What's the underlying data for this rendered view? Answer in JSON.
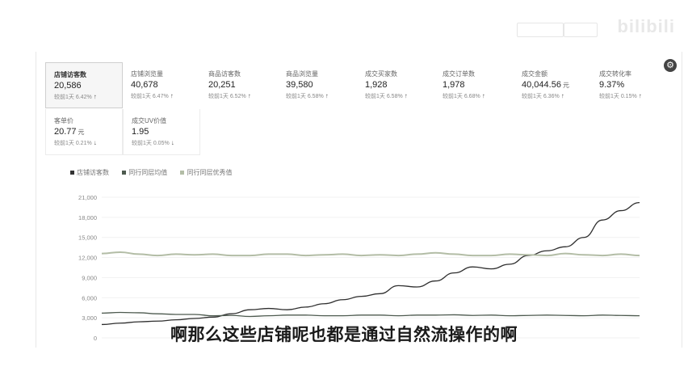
{
  "metrics": [
    {
      "name": "店铺访客数",
      "value": "20,586",
      "unit": "",
      "compare": "较前1天 6.42%",
      "trend": "up"
    },
    {
      "name": "店铺浏览量",
      "value": "40,678",
      "unit": "",
      "compare": "较前1天 6.47%",
      "trend": "up"
    },
    {
      "name": "商品访客数",
      "value": "20,251",
      "unit": "",
      "compare": "较前1天 6.52%",
      "trend": "up"
    },
    {
      "name": "商品浏览量",
      "value": "39,580",
      "unit": "",
      "compare": "较前1天 6.58%",
      "trend": "up"
    },
    {
      "name": "成交买家数",
      "value": "1,928",
      "unit": "",
      "compare": "较前1天 6.58%",
      "trend": "up"
    },
    {
      "name": "成交订单数",
      "value": "1,978",
      "unit": "",
      "compare": "较前1天 6.68%",
      "trend": "up"
    },
    {
      "name": "成交金额",
      "value": "40,044.56",
      "unit": "元",
      "compare": "较前1天 6.36%",
      "trend": "up"
    },
    {
      "name": "成交转化率",
      "value": "9.37%",
      "unit": "",
      "compare": "较前1天 0.15%",
      "trend": "up"
    },
    {
      "name": "客单价",
      "value": "20.77",
      "unit": "元",
      "compare": "较前1天 0.21%",
      "trend": "down"
    },
    {
      "name": "成交UV价值",
      "value": "1.95",
      "unit": "",
      "compare": "较前1天 0.05%",
      "trend": "down"
    }
  ],
  "icons": {
    "up": "↑",
    "down": "↓",
    "help": "⚙"
  },
  "legend": [
    {
      "label": "店铺访客数",
      "color": "#333333"
    },
    {
      "label": "同行同层均值",
      "color": "#4d5a4f"
    },
    {
      "label": "同行同层优秀值",
      "color": "#b3bda6"
    }
  ],
  "watermark": "bilibili",
  "subtitle": "啊那么这些店铺呢也都是通过自然流操作的啊",
  "chart_data": {
    "type": "line",
    "ylim": [
      0,
      21000
    ],
    "yticks": [
      0,
      3000,
      6000,
      9000,
      12000,
      15000,
      18000,
      21000
    ],
    "ytick_labels": [
      "0",
      "3,000",
      "6,000",
      "9,000",
      "12,000",
      "15,000",
      "18,000",
      "21,000"
    ],
    "x": [
      0,
      1,
      2,
      3,
      4,
      5,
      6,
      7,
      8,
      9,
      10,
      11,
      12,
      13,
      14,
      15,
      16,
      17,
      18,
      19,
      20,
      21,
      22,
      23,
      24,
      25,
      26,
      27,
      28,
      29
    ],
    "series": [
      {
        "name": "店铺访客数",
        "color": "#2f2f2f",
        "values": [
          2000,
          2200,
          2400,
          2500,
          2700,
          2900,
          3100,
          3600,
          4200,
          4400,
          4200,
          4600,
          5100,
          5700,
          6200,
          6600,
          7800,
          7600,
          8500,
          9700,
          10600,
          10300,
          11000,
          12300,
          13000,
          13600,
          15000,
          17600,
          19000,
          20200
        ]
      },
      {
        "name": "同行同层均值",
        "color": "#4d5a4f",
        "values": [
          3700,
          3800,
          3750,
          3600,
          3500,
          3500,
          3300,
          3350,
          3200,
          3300,
          3400,
          3400,
          3300,
          3300,
          3400,
          3400,
          3300,
          3400,
          3400,
          3450,
          3350,
          3400,
          3300,
          3350,
          3400,
          3350,
          3300,
          3400,
          3350,
          3300
        ]
      },
      {
        "name": "同行同层优秀值",
        "color": "#b3bda6",
        "values": [
          12600,
          12800,
          12500,
          12300,
          12500,
          12400,
          12500,
          12300,
          12300,
          12500,
          12500,
          12300,
          12400,
          12500,
          12300,
          12400,
          12300,
          12500,
          12700,
          12500,
          12300,
          12300,
          12500,
          12400,
          12300,
          12600,
          12400,
          12300,
          12500,
          12300
        ]
      }
    ]
  }
}
